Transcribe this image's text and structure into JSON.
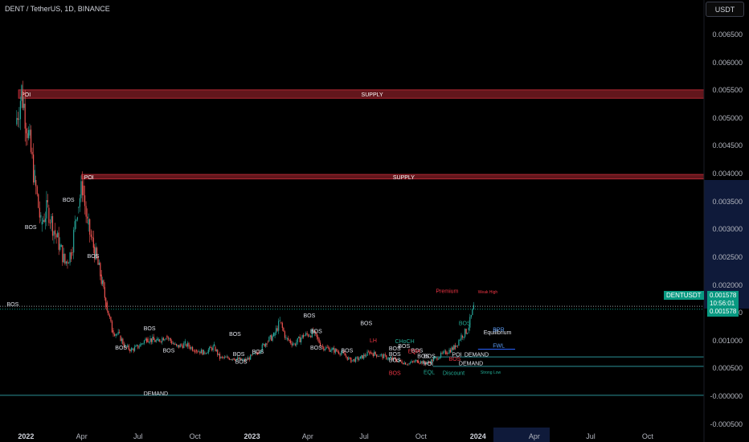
{
  "header": {
    "title": "DENT / TetherUS, 1D, BINANCE"
  },
  "currency_button": {
    "label": "USDT"
  },
  "y_axis": {
    "ticks": [
      "0.006500",
      "0.006000",
      "0.005500",
      "0.005000",
      "0.004500",
      "0.004000",
      "0.003500",
      "0.003000",
      "0.002500",
      "0.002000",
      "0.001500",
      "0.001000",
      "0.000500",
      "-0.000000",
      "-0.000500"
    ],
    "values": [
      0.0065,
      0.006,
      0.0055,
      0.005,
      0.0045,
      0.004,
      0.0035,
      0.003,
      0.0025,
      0.002,
      0.0015,
      0.001,
      0.0005,
      0.0,
      -0.0005
    ]
  },
  "x_axis": {
    "ticks": [
      {
        "label": "2022",
        "bold": true,
        "date": "2022-01-01"
      },
      {
        "label": "Apr",
        "bold": false,
        "date": "2022-04-01"
      },
      {
        "label": "Jul",
        "bold": false,
        "date": "2022-07-01"
      },
      {
        "label": "Oct",
        "bold": false,
        "date": "2022-10-01"
      },
      {
        "label": "2023",
        "bold": true,
        "date": "2023-01-01"
      },
      {
        "label": "Apr",
        "bold": false,
        "date": "2023-04-01"
      },
      {
        "label": "Jul",
        "bold": false,
        "date": "2023-07-01"
      },
      {
        "label": "Oct",
        "bold": false,
        "date": "2023-10-01"
      },
      {
        "label": "2024",
        "bold": true,
        "date": "2024-01-01"
      },
      {
        "label": "Apr",
        "bold": false,
        "date": "2024-04-01"
      },
      {
        "label": "Jul",
        "bold": false,
        "date": "2024-07-01"
      },
      {
        "label": "Oct",
        "bold": false,
        "date": "2024-10-01"
      }
    ]
  },
  "price_tag": {
    "symbol": "DENTUSDT",
    "price": "0.001578",
    "countdown": "10:56:01",
    "price_repeat": "0.001578",
    "value": 0.001578
  },
  "colors": {
    "up": "#26a69a",
    "down": "#ef5350",
    "supply": "#b22833",
    "demand_line": "#2a8f95",
    "label_white": "#e0e3eb",
    "label_red": "#f23645",
    "label_teal": "#22ab94",
    "label_blue": "#5b9cf6"
  },
  "chart_data": {
    "type": "candlestick",
    "title": "DENT / TetherUS, 1D, BINANCE",
    "ylim": [
      -0.0005,
      0.0068
    ],
    "series": [
      {
        "name": "DENTUSDT",
        "points": [
          [
            "2021-12-15",
            0.0049
          ],
          [
            "2021-12-25",
            0.0055
          ],
          [
            "2022-01-05",
            0.0047
          ],
          [
            "2022-01-15",
            0.0039
          ],
          [
            "2022-01-25",
            0.0031
          ],
          [
            "2022-02-05",
            0.0034
          ],
          [
            "2022-02-15",
            0.003
          ],
          [
            "2022-02-25",
            0.0027
          ],
          [
            "2022-03-05",
            0.0024
          ],
          [
            "2022-03-15",
            0.0026
          ],
          [
            "2022-03-25",
            0.0034
          ],
          [
            "2022-04-02",
            0.0038
          ],
          [
            "2022-04-10",
            0.0031
          ],
          [
            "2022-04-20",
            0.0027
          ],
          [
            "2022-05-01",
            0.0022
          ],
          [
            "2022-05-10",
            0.0017
          ],
          [
            "2022-05-20",
            0.0012
          ],
          [
            "2022-06-01",
            0.0011
          ],
          [
            "2022-06-10",
            0.0009
          ],
          [
            "2022-06-20",
            0.00085
          ],
          [
            "2022-07-01",
            0.0009
          ],
          [
            "2022-07-15",
            0.00105
          ],
          [
            "2022-08-01",
            0.001
          ],
          [
            "2022-08-15",
            0.0011
          ],
          [
            "2022-09-01",
            0.0009
          ],
          [
            "2022-09-15",
            0.00095
          ],
          [
            "2022-10-01",
            0.00085
          ],
          [
            "2022-10-15",
            0.0008
          ],
          [
            "2022-11-01",
            0.0009
          ],
          [
            "2022-11-10",
            0.0007
          ],
          [
            "2022-12-01",
            0.0007
          ],
          [
            "2022-12-20",
            0.00065
          ],
          [
            "2023-01-10",
            0.0008
          ],
          [
            "2023-01-25",
            0.001
          ],
          [
            "2023-02-05",
            0.0011
          ],
          [
            "2023-02-15",
            0.00135
          ],
          [
            "2023-02-25",
            0.00105
          ],
          [
            "2023-03-10",
            0.00095
          ],
          [
            "2023-03-25",
            0.0011
          ],
          [
            "2023-04-10",
            0.00115
          ],
          [
            "2023-04-25",
            0.0009
          ],
          [
            "2023-05-10",
            0.00085
          ],
          [
            "2023-05-25",
            0.0008
          ],
          [
            "2023-06-10",
            0.00065
          ],
          [
            "2023-06-25",
            0.0007
          ],
          [
            "2023-07-10",
            0.0008
          ],
          [
            "2023-07-25",
            0.00075
          ],
          [
            "2023-08-10",
            0.0007
          ],
          [
            "2023-08-25",
            0.00065
          ],
          [
            "2023-09-10",
            0.0006
          ],
          [
            "2023-09-25",
            0.00065
          ],
          [
            "2023-10-10",
            0.0006
          ],
          [
            "2023-10-25",
            0.0007
          ],
          [
            "2023-11-10",
            0.0008
          ],
          [
            "2023-11-25",
            0.0009
          ],
          [
            "2023-12-05",
            0.0011
          ],
          [
            "2023-12-15",
            0.0012
          ],
          [
            "2023-12-25",
            0.0016
          ]
        ]
      }
    ],
    "last_price": 0.001578,
    "zones": [
      {
        "label": "SUPPLY",
        "tag": "POI",
        "from": 0.00537,
        "to": 0.00552,
        "start": "2021-12-20"
      },
      {
        "label": "SUPPLY",
        "tag": "POI",
        "from": 0.00392,
        "to": 0.004,
        "start": "2022-04-01"
      }
    ],
    "annotations": [
      {
        "text": "BOS",
        "date": "2021-12-01",
        "price": 0.00163,
        "color": "white"
      },
      {
        "text": "BOS",
        "date": "2021-12-30",
        "price": 0.00302,
        "color": "white"
      },
      {
        "text": "BOS",
        "date": "2022-03-01",
        "price": 0.00351,
        "color": "white"
      },
      {
        "text": "BOS",
        "date": "2022-04-10",
        "price": 0.0025,
        "color": "white"
      },
      {
        "text": "BOS",
        "date": "2022-05-25",
        "price": 0.00085,
        "color": "white"
      },
      {
        "text": "BOS",
        "date": "2022-07-10",
        "price": 0.0012,
        "color": "white"
      },
      {
        "text": "BOS",
        "date": "2022-08-10",
        "price": 0.0008,
        "color": "white"
      },
      {
        "text": "BOS",
        "date": "2022-11-25",
        "price": 0.0011,
        "color": "white"
      },
      {
        "text": "BOS",
        "date": "2022-12-05",
        "price": 0.0006,
        "color": "white"
      },
      {
        "text": "BOS",
        "date": "2023-01-01",
        "price": 0.00078,
        "color": "white"
      },
      {
        "text": "BOS",
        "date": "2022-12-01",
        "price": 0.00074,
        "color": "white"
      },
      {
        "text": "BOS",
        "date": "2023-03-25",
        "price": 0.00143,
        "color": "white"
      },
      {
        "text": "BOS",
        "date": "2023-04-05",
        "price": 0.00115,
        "color": "white"
      },
      {
        "text": "BOS",
        "date": "2023-04-05",
        "price": 0.00085,
        "color": "white"
      },
      {
        "text": "BOS",
        "date": "2023-05-25",
        "price": 0.0008,
        "color": "white"
      },
      {
        "text": "BOS",
        "date": "2023-06-25",
        "price": 0.00129,
        "color": "white"
      },
      {
        "text": "LH",
        "date": "2023-07-10",
        "price": 0.00098,
        "color": "red"
      },
      {
        "text": "BOS",
        "date": "2023-08-10",
        "price": 0.00084,
        "color": "white"
      },
      {
        "text": "BOS",
        "date": "2023-08-10",
        "price": 0.00074,
        "color": "white"
      },
      {
        "text": "BOS",
        "date": "2023-08-10",
        "price": 0.00063,
        "color": "white"
      },
      {
        "text": "BOS",
        "date": "2023-08-10",
        "price": 0.0004,
        "color": "red"
      },
      {
        "text": "CHoCH",
        "date": "2023-08-20",
        "price": 0.00097,
        "color": "teal"
      },
      {
        "text": "BOS",
        "date": "2023-08-25",
        "price": 0.00088,
        "color": "white"
      },
      {
        "text": "BOS",
        "date": "2023-09-15",
        "price": 0.0008,
        "color": "white"
      },
      {
        "text": "EQH",
        "date": "2023-09-10",
        "price": 0.00079,
        "color": "red"
      },
      {
        "text": "BOS",
        "date": "2023-09-25",
        "price": 0.0007,
        "color": "white"
      },
      {
        "text": "BOS",
        "date": "2023-10-05",
        "price": 0.0007,
        "color": "white"
      },
      {
        "text": "POI",
        "date": "2023-10-05",
        "price": 0.00056,
        "color": "white"
      },
      {
        "text": "EQL",
        "date": "2023-10-05",
        "price": 0.00041,
        "color": "teal"
      },
      {
        "text": "Discount",
        "date": "2023-11-05",
        "price": 0.0004,
        "color": "teal"
      },
      {
        "text": "BOS",
        "date": "2023-11-15",
        "price": 0.00065,
        "color": "red"
      },
      {
        "text": "POI",
        "date": "2023-11-20",
        "price": 0.00073,
        "color": "white"
      },
      {
        "text": "DEMAND",
        "date": "2023-12-10",
        "price": 0.00073,
        "color": "white"
      },
      {
        "text": "DEMAND",
        "date": "2023-12-01",
        "price": 0.00057,
        "color": "white"
      },
      {
        "text": "BOS",
        "date": "2023-12-01",
        "price": 0.00129,
        "color": "teal"
      },
      {
        "text": "Premium",
        "date": "2023-10-25",
        "price": 0.00187,
        "color": "red"
      },
      {
        "text": "Weak High",
        "date": "2024-01-01",
        "price": 0.00186,
        "color": "red"
      },
      {
        "text": "Equilibrium",
        "date": "2024-01-10",
        "price": 0.00113,
        "color": "white"
      },
      {
        "text": "BPR",
        "date": "2024-01-25",
        "price": 0.00118,
        "color": "blue"
      },
      {
        "text": "FWL",
        "date": "2024-01-25",
        "price": 0.00089,
        "color": "blue"
      },
      {
        "text": "Strong Low",
        "date": "2024-01-05",
        "price": 0.00042,
        "color": "teal"
      },
      {
        "text": "DEMAND",
        "date": "2022-07-10",
        "price": 3e-05,
        "color": "white"
      }
    ],
    "hlines": [
      {
        "price": 0.00163,
        "from": "2021-11-20",
        "to": "2024-12-31",
        "color": "#9aa0a6",
        "dashed": true
      },
      {
        "price": 0.00072,
        "from": "2023-10-20",
        "to": "2024-12-31",
        "color": "#2a8f95"
      },
      {
        "price": 0.00055,
        "from": "2023-10-20",
        "to": "2024-12-31",
        "color": "#2a8f95"
      },
      {
        "price": 3e-05,
        "from": "2021-11-20",
        "to": "2024-12-31",
        "color": "#2a8f95"
      },
      {
        "price": 0.00086,
        "from": "2024-01-01",
        "to": "2024-03-01",
        "color": "#2962ff"
      }
    ]
  }
}
